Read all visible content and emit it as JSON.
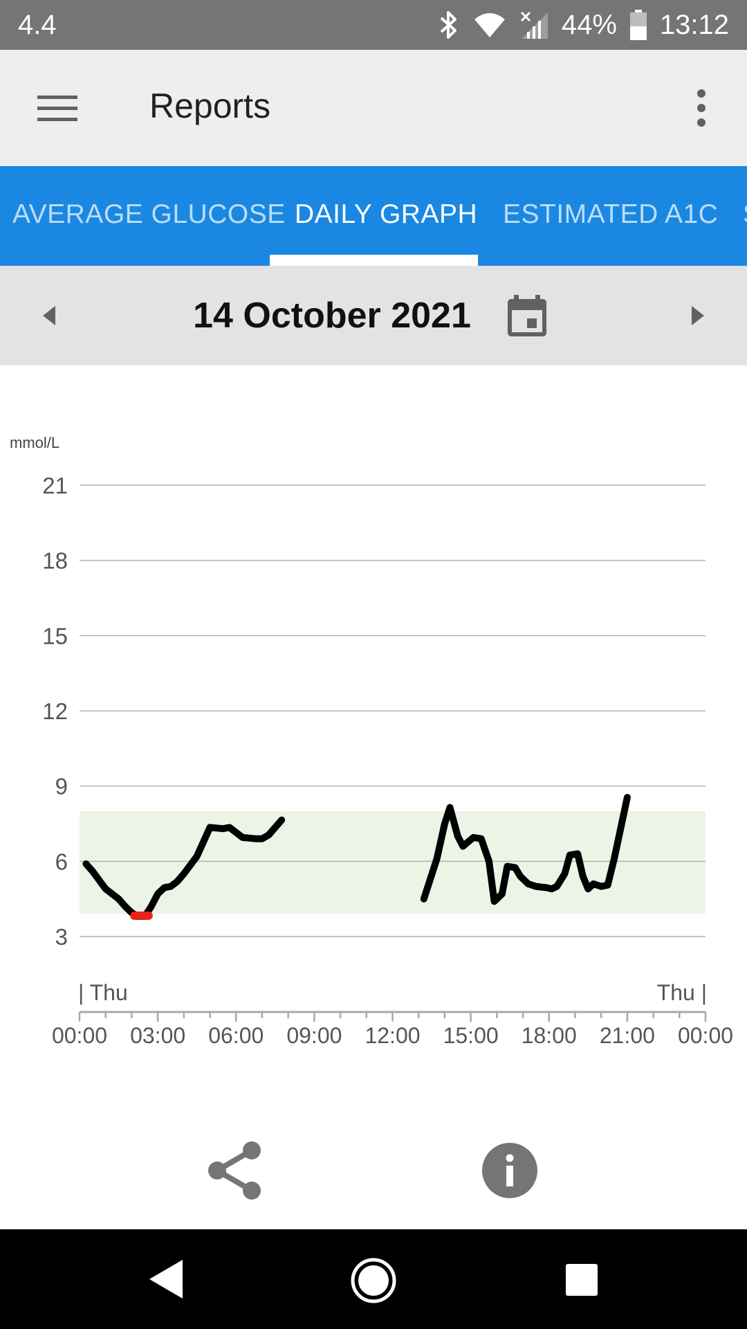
{
  "status_bar": {
    "left_text": "4.4",
    "battery_text": "44%",
    "time": "13:12",
    "icons": [
      "bluetooth-icon",
      "wifi-icon",
      "cell-signal-off-icon",
      "battery-icon"
    ]
  },
  "app_bar": {
    "title": "Reports",
    "icons": [
      "hamburger-menu-icon",
      "overflow-menu-icon"
    ]
  },
  "tabs": [
    {
      "label": "AVERAGE GLUCOSE",
      "active": false
    },
    {
      "label": "DAILY GRAPH",
      "active": true
    },
    {
      "label": "ESTIMATED A1C",
      "active": false
    },
    {
      "label": "S",
      "active": false
    }
  ],
  "date_bar": {
    "date": "14 October 2021",
    "icons": [
      "chevron-left-icon",
      "calendar-icon",
      "chevron-right-icon"
    ]
  },
  "chart_data": {
    "type": "line",
    "ylabel": "mmol/L",
    "ylim": [
      3,
      21
    ],
    "yticks": [
      3,
      6,
      9,
      12,
      15,
      18,
      21
    ],
    "xlim_hours": [
      0,
      24
    ],
    "xticks": [
      "00:00",
      "03:00",
      "06:00",
      "09:00",
      "12:00",
      "15:00",
      "18:00",
      "21:00",
      "00:00"
    ],
    "day_start_label": "| Thu",
    "day_end_label": "Thu |",
    "target_range": [
      3.9,
      8.0
    ],
    "target_range_color": "#ecf5e5",
    "line_color": "#000000",
    "low_color": "#e8211c",
    "grid": true,
    "segments": [
      [
        [
          0.25,
          5.9
        ],
        [
          0.5,
          5.6
        ],
        [
          1.0,
          4.9
        ],
        [
          1.5,
          4.5
        ],
        [
          1.75,
          4.2
        ],
        [
          2.0,
          3.95
        ],
        [
          2.25,
          3.8
        ],
        [
          2.5,
          3.8
        ],
        [
          2.75,
          4.2
        ],
        [
          3.0,
          4.7
        ],
        [
          3.25,
          4.95
        ],
        [
          3.5,
          5.0
        ],
        [
          3.75,
          5.2
        ],
        [
          4.0,
          5.5
        ],
        [
          4.5,
          6.2
        ],
        [
          5.0,
          7.35
        ],
        [
          5.5,
          7.3
        ],
        [
          5.75,
          7.35
        ],
        [
          6.0,
          7.15
        ],
        [
          6.25,
          6.95
        ],
        [
          6.75,
          6.9
        ],
        [
          7.0,
          6.9
        ],
        [
          7.25,
          7.05
        ],
        [
          7.75,
          7.65
        ]
      ],
      [
        [
          13.2,
          4.5
        ],
        [
          13.7,
          6.1
        ],
        [
          14.0,
          7.5
        ],
        [
          14.2,
          8.15
        ],
        [
          14.5,
          7.0
        ],
        [
          14.7,
          6.6
        ],
        [
          15.1,
          6.95
        ],
        [
          15.4,
          6.9
        ],
        [
          15.7,
          6.0
        ],
        [
          15.9,
          4.4
        ],
        [
          16.2,
          4.7
        ],
        [
          16.4,
          5.8
        ],
        [
          16.7,
          5.75
        ],
        [
          16.9,
          5.4
        ],
        [
          17.2,
          5.1
        ],
        [
          17.5,
          5.0
        ],
        [
          17.9,
          4.95
        ],
        [
          18.1,
          4.9
        ],
        [
          18.3,
          5.0
        ],
        [
          18.6,
          5.5
        ],
        [
          18.8,
          6.25
        ],
        [
          19.1,
          6.3
        ],
        [
          19.3,
          5.4
        ],
        [
          19.5,
          4.9
        ],
        [
          19.7,
          5.1
        ],
        [
          20.0,
          5.0
        ],
        [
          20.25,
          5.05
        ],
        [
          20.5,
          6.1
        ],
        [
          21.0,
          8.55
        ]
      ]
    ],
    "low_segment": [
      [
        2.1,
        3.83
      ],
      [
        2.65,
        3.83
      ]
    ]
  },
  "actions": {
    "icons": [
      "share-icon",
      "info-icon"
    ]
  },
  "nav_bar": {
    "icons": [
      "back-icon",
      "home-icon",
      "recents-icon"
    ]
  }
}
